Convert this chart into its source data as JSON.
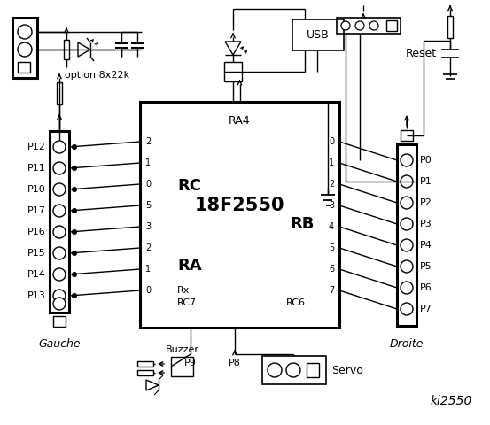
{
  "title": "ki2550",
  "bg_color": "#ffffff",
  "chip_label": "18F2550",
  "chip_sub": "RA4",
  "rc_label": "RC",
  "ra_label": "RA",
  "rb_label": "RB",
  "rc_pins": [
    "2",
    "1",
    "0",
    "5",
    "3",
    "2",
    "1",
    "0"
  ],
  "rb_pins": [
    "0",
    "1",
    "2",
    "3",
    "4",
    "5",
    "6",
    "7"
  ],
  "left_labels": [
    "P12",
    "P11",
    "P10",
    "P17",
    "P16",
    "P15",
    "P14",
    "P13"
  ],
  "right_labels": [
    "P0",
    "P1",
    "P2",
    "P3",
    "P4",
    "P5",
    "P6",
    "P7"
  ],
  "left_connector": "Gauche",
  "right_connector": "Droite",
  "option_label": "option 8x22k",
  "reset_label": "Reset",
  "usb_label": "USB",
  "buzzer_label": "Buzzer",
  "p9_label": "P9",
  "p8_label": "P8",
  "servo_label": "Servo",
  "rx_label": "Rx",
  "rc7_label": "RC7",
  "rc6_label": "RC6"
}
